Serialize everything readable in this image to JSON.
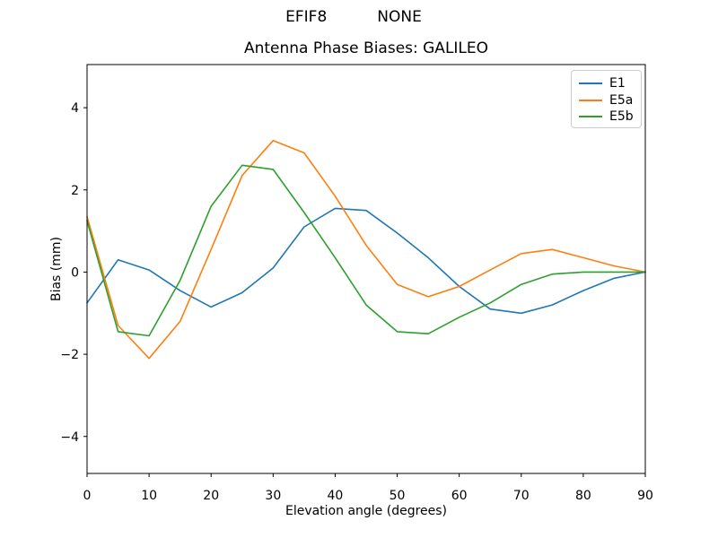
{
  "header": {
    "suptitle_left": "EFIF8",
    "suptitle_right": "NONE"
  },
  "chart_data": {
    "type": "line",
    "title": "Antenna Phase Biases: GALILEO",
    "xlabel": "Elevation angle (degrees)",
    "ylabel": "Bias (mm)",
    "xlim": [
      0,
      90
    ],
    "ylim": [
      -4.9,
      5.05
    ],
    "x_ticks": [
      0,
      10,
      20,
      30,
      40,
      50,
      60,
      70,
      80,
      90
    ],
    "y_ticks": [
      -4,
      -2,
      0,
      2,
      4
    ],
    "y_tick_labels": [
      "−4",
      "−2",
      "0",
      "2",
      "4"
    ],
    "grid": false,
    "legend_position": "upper right",
    "x": [
      0,
      5,
      10,
      15,
      20,
      25,
      30,
      35,
      40,
      45,
      50,
      55,
      60,
      65,
      70,
      75,
      80,
      85,
      90
    ],
    "series": [
      {
        "name": "E1",
        "color": "#1f77b4",
        "values": [
          -0.75,
          0.3,
          0.05,
          -0.45,
          -0.85,
          -0.5,
          0.1,
          1.1,
          1.55,
          1.5,
          0.95,
          0.35,
          -0.35,
          -0.9,
          -1.0,
          -0.8,
          -0.45,
          -0.15,
          0.0
        ]
      },
      {
        "name": "E5a",
        "color": "#ff7f0e",
        "values": [
          1.35,
          -1.3,
          -2.1,
          -1.2,
          0.55,
          2.35,
          3.2,
          2.9,
          1.85,
          0.65,
          -0.3,
          -0.6,
          -0.35,
          0.05,
          0.45,
          0.55,
          0.35,
          0.15,
          0.0
        ]
      },
      {
        "name": "E5b",
        "color": "#2ca02c",
        "values": [
          1.25,
          -1.45,
          -1.55,
          -0.2,
          1.6,
          2.6,
          2.5,
          1.45,
          0.35,
          -0.8,
          -1.45,
          -1.5,
          -1.1,
          -0.75,
          -0.3,
          -0.05,
          0.0,
          0.0,
          0.0
        ]
      }
    ]
  }
}
